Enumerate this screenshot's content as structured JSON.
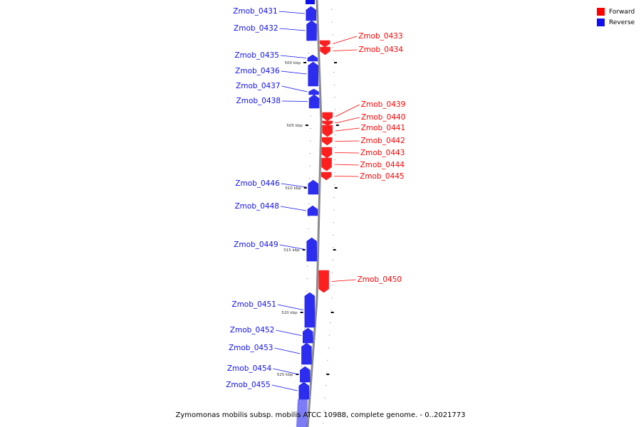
{
  "colors": {
    "forward": "#ff0000",
    "reverse": "#1010ee",
    "axis": "#8a8a8a"
  },
  "legend": {
    "forward_label": "Forward",
    "reverse_label": "Reverse"
  },
  "caption": "Zymomonas mobilis subsp. mobilis ATCC 10988, complete genome. - 0..2021773",
  "scale_labels": [
    "500 kbp",
    "505 kbp",
    "510 kbp",
    "515 kbp",
    "520 kbp",
    "525 kbp"
  ],
  "genes": [
    {
      "name": "Zmob_0431",
      "strand": "reverse"
    },
    {
      "name": "Zmob_0432",
      "strand": "reverse"
    },
    {
      "name": "Zmob_0433",
      "strand": "forward"
    },
    {
      "name": "Zmob_0434",
      "strand": "forward"
    },
    {
      "name": "Zmob_0435",
      "strand": "reverse"
    },
    {
      "name": "Zmob_0436",
      "strand": "reverse"
    },
    {
      "name": "Zmob_0437",
      "strand": "reverse"
    },
    {
      "name": "Zmob_0438",
      "strand": "reverse"
    },
    {
      "name": "Zmob_0439",
      "strand": "forward"
    },
    {
      "name": "Zmob_0440",
      "strand": "forward"
    },
    {
      "name": "Zmob_0441",
      "strand": "forward"
    },
    {
      "name": "Zmob_0442",
      "strand": "forward"
    },
    {
      "name": "Zmob_0443",
      "strand": "forward"
    },
    {
      "name": "Zmob_0444",
      "strand": "forward"
    },
    {
      "name": "Zmob_0445",
      "strand": "forward"
    },
    {
      "name": "Zmob_0446",
      "strand": "reverse"
    },
    {
      "name": "Zmob_0448",
      "strand": "reverse"
    },
    {
      "name": "Zmob_0449",
      "strand": "reverse"
    },
    {
      "name": "Zmob_0450",
      "strand": "forward"
    },
    {
      "name": "Zmob_0451",
      "strand": "reverse"
    },
    {
      "name": "Zmob_0452",
      "strand": "reverse"
    },
    {
      "name": "Zmob_0453",
      "strand": "reverse"
    },
    {
      "name": "Zmob_0454",
      "strand": "reverse"
    },
    {
      "name": "Zmob_0455",
      "strand": "reverse"
    }
  ]
}
